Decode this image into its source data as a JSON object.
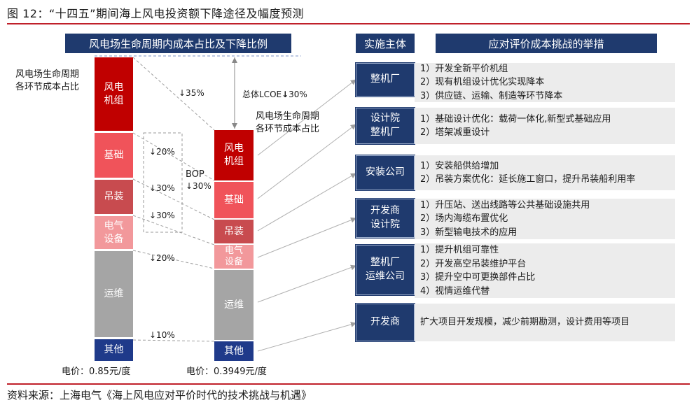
{
  "figure": {
    "title": "图 12：“十四五”期间海上风电投资额下降途径及幅度预测",
    "source": "资料来源：上海电气《海上风电应对平价时代的技术挑战与机遇》"
  },
  "left_panel": {
    "header": "风电场生命周期内成本占比及下降比例",
    "left_axis_label_line1": "风电场生命周期",
    "left_axis_label_line2": "各环节成本占比",
    "right_axis_label_line1": "风电场生命周期",
    "right_axis_label_line2": "各环节成本占比",
    "total_lcoe": "总体LCOE",
    "total_lcoe_pct": "30%",
    "bop_label": "BOP",
    "bop_pct": "↓30%",
    "left_price": "电价：0.85元/度",
    "right_price": "电价：0.3949元/度",
    "segments": [
      {
        "label_line1": "风电",
        "label_line2": "机组",
        "reduction": "↓35%",
        "color": "#c00000"
      },
      {
        "label_line1": "基础",
        "label_line2": "",
        "reduction": "↓20%",
        "color": "#f0535a"
      },
      {
        "label_line1": "吊装",
        "label_line2": "",
        "reduction": "↓30%",
        "color": "#c84b4f"
      },
      {
        "label_line1": "电气",
        "label_line2": "设备",
        "reduction": "↓30%",
        "color": "#f2989b"
      },
      {
        "label_line1": "运维",
        "label_line2": "",
        "reduction": "↓20%",
        "color": "#a5a5a5"
      },
      {
        "label_line1": "其他",
        "label_line2": "",
        "reduction": "↓10%",
        "color": "#1f3a8a"
      }
    ]
  },
  "right_panel": {
    "actor_header": "实施主体",
    "measure_header": "应对评价成本挑战的举措",
    "rows": [
      {
        "actor": [
          "整机厂"
        ],
        "measures": [
          "1）开发全新平价机组",
          "2）现有机组设计优化实现降本",
          "3）供应链、运输、制造等环节降本"
        ]
      },
      {
        "actor": [
          "设计院",
          "整机厂"
        ],
        "measures": [
          "1）基础设计优化：载荷一体化,新型式基础应用",
          "2）塔架减重设计"
        ]
      },
      {
        "actor": [
          "安装公司"
        ],
        "measures": [
          "1）安装船供给增加",
          "2）吊装方案优化：延长施工窗口，提升吊装船利用率"
        ]
      },
      {
        "actor": [
          "开发商",
          "设计院"
        ],
        "measures": [
          "1）升压站、送出线路等公共基础设施共用",
          "2）场内海缆布置优化",
          "3）新型输电技术的应用"
        ]
      },
      {
        "actor": [
          "整机厂",
          "运维公司"
        ],
        "measures": [
          "1）提升机组可靠性",
          "2）开发高空吊装维护平台",
          "3）提升空中可更换部件占比",
          "4）视情运维代替"
        ]
      },
      {
        "actor": [
          "开发商"
        ],
        "measures": [
          "扩大项目开发规模，减少前期勘测，设计费用等项目"
        ]
      }
    ]
  }
}
